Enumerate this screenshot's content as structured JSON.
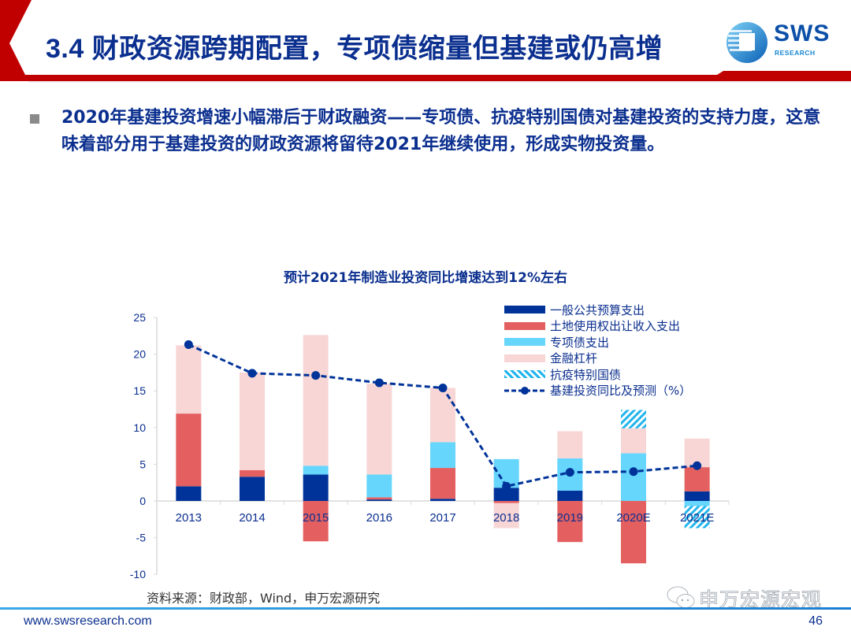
{
  "header": {
    "title": "3.4 财政资源跨期配置，专项债缩量但基建或仍高增",
    "logo_text": "SWS",
    "logo_subtext": "RESEARCH"
  },
  "bullet": {
    "text": "2020年基建投资增速小幅滞后于财政融资——专项债、抗疫特别国债对基建投资的支持力度，这意味着部分用于基建投资的财政资源将留待2021年继续使用，形成实物投资量。"
  },
  "colors": {
    "brand_red": "#c00000",
    "brand_blue": "#0b2f8f",
    "general_budget": "#003399",
    "land_sale": "#e46060",
    "special_bond": "#66d6fc",
    "financial_leverage": "#f8d6d6",
    "special_treasury": "#22b5ec",
    "line": "#003399"
  },
  "chart_data": {
    "type": "bar",
    "stacked": true,
    "title": "预计2021年制造业投资同比增速达到12%左右",
    "xlabel": "",
    "ylabel": "",
    "ylim": [
      -10,
      25
    ],
    "yticks": [
      "25",
      "20",
      "15",
      "10",
      "5",
      "0",
      "-5",
      "-10"
    ],
    "ytick_values": [
      25,
      20,
      15,
      10,
      5,
      0,
      -5,
      -10
    ],
    "categories": [
      "2013",
      "2014",
      "2015",
      "2016",
      "2017",
      "2018",
      "2019",
      "2020E",
      "2021E"
    ],
    "legend_position": "top-right",
    "series": [
      {
        "name": "一般公共预算支出",
        "kind": "bar",
        "color_key": "general_budget",
        "values": [
          2.0,
          3.3,
          3.6,
          0.2,
          0.3,
          1.8,
          1.4,
          0.0,
          1.3
        ]
      },
      {
        "name": "土地使用权出让收入支出",
        "kind": "bar",
        "color_key": "land_sale",
        "values": [
          9.9,
          0.9,
          -5.5,
          0.3,
          4.2,
          -0.3,
          -5.6,
          -8.5,
          3.3
        ]
      },
      {
        "name": "专项债支出",
        "kind": "bar",
        "color_key": "special_bond",
        "values": [
          0.0,
          0.0,
          1.2,
          3.1,
          3.5,
          3.9,
          4.4,
          6.5,
          -0.7
        ]
      },
      {
        "name": "金融杠杆",
        "kind": "bar",
        "color_key": "financial_leverage",
        "values": [
          9.3,
          13.3,
          17.8,
          12.4,
          7.4,
          -3.4,
          3.7,
          3.4,
          3.9
        ]
      },
      {
        "name": "抗疫特别国债",
        "kind": "bar",
        "hatched": true,
        "color_key": "special_treasury",
        "values": [
          0.0,
          0.0,
          0.0,
          0.0,
          0.0,
          0.0,
          0.0,
          2.5,
          -3.0
        ]
      },
      {
        "name": "基建投资同比及预测（%）",
        "kind": "line",
        "style": "dashed",
        "color_key": "line",
        "values": [
          21.3,
          17.4,
          17.1,
          16.1,
          15.4,
          2.0,
          3.9,
          4.0,
          4.8
        ]
      }
    ]
  },
  "source": "资料来源：财政部，Wind，申万宏源研究",
  "footer": {
    "url": "www.swsresearch.com",
    "page_number": "46",
    "watermark": "申万宏源宏观"
  }
}
